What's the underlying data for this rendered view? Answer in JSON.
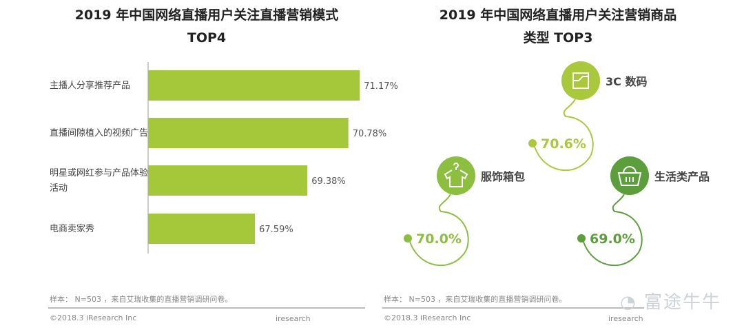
{
  "chart_data": [
    {
      "type": "bar",
      "orientation": "horizontal",
      "title": [
        "2019 年中国网络直播用户关注直播营销模式",
        "TOP4"
      ],
      "categories": [
        "主播人分享推荐产品",
        "直播间隙植入的视频广告",
        "明星或网红参与产品体验活动",
        "电商卖家秀"
      ],
      "category_lines": [
        [
          "主播人分享推荐产品"
        ],
        [
          "直播间隙植入的视频广告"
        ],
        [
          "明星或网红参与产品体验",
          "活动"
        ],
        [
          "电商卖家秀"
        ]
      ],
      "values": [
        71.17,
        70.78,
        69.38,
        67.59
      ],
      "labels": [
        "71.17%",
        "70.78%",
        "69.38%",
        "67.59%"
      ],
      "color": "#a5c83a",
      "grid": false
    },
    {
      "type": "infographic",
      "title": [
        "2019 年中国网络直播用户关注营销商品",
        "类型 TOP3"
      ],
      "items": [
        {
          "label": "3C 数码",
          "value": 70.6,
          "value_label": "70.6%",
          "icon": "circuit-chip-icon",
          "color": "#a9c83c"
        },
        {
          "label": "服饰箱包",
          "value": 70.0,
          "value_label": "70.0%",
          "icon": "shirt-hanger-icon",
          "color": "#8cbf3f"
        },
        {
          "label": "生活类产品",
          "value": 69.0,
          "value_label": "69.0%",
          "icon": "basket-icon",
          "color": "#5c9e3c"
        }
      ]
    }
  ],
  "footer": {
    "sample": "样本： N=503 ，来自艾瑞收集的直播营销调研问卷。",
    "copyright": "©2018.3 iResearch Inc",
    "brand": "iresearch"
  },
  "watermark": "富途牛牛"
}
